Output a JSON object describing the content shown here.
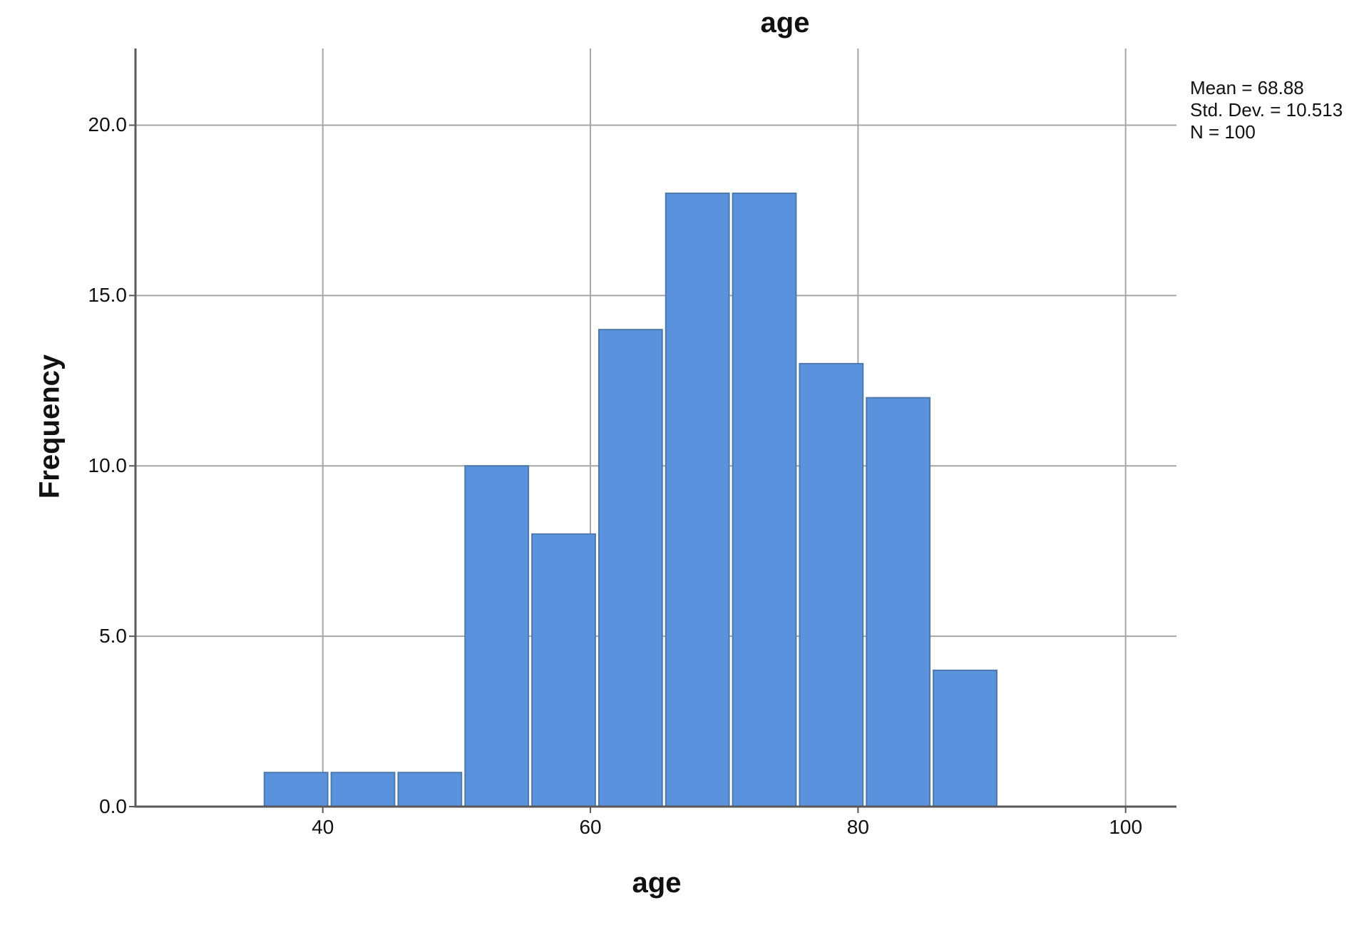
{
  "figure": {
    "background": "#ffffff"
  },
  "chart_data": {
    "type": "bar",
    "subtype": "histogram",
    "title": "age",
    "xlabel": "age",
    "ylabel": "Frequency",
    "grid": true,
    "legend": false,
    "x_axis": {
      "ticks": [
        40,
        60,
        80,
        100
      ],
      "tick_labels": [
        "40",
        "60",
        "80",
        "100"
      ],
      "range": [
        26,
        103.8
      ]
    },
    "y_axis": {
      "ticks": [
        0,
        5,
        10,
        15,
        20
      ],
      "tick_labels": [
        "0.0",
        "5.0",
        "10.0",
        "15.0",
        "20.0"
      ],
      "range": [
        0,
        22.25
      ]
    },
    "bin_width": 5,
    "bin_edges": [
      35.5,
      40.5,
      45.5,
      50.5,
      55.5,
      60.5,
      65.5,
      70.5,
      75.5,
      80.5,
      85.5,
      90.5
    ],
    "counts": [
      1,
      1,
      1,
      10,
      8,
      14,
      18,
      18,
      13,
      12,
      4
    ],
    "annotation": {
      "position": "top-right",
      "lines": [
        "Mean = 68.88",
        "Std. Dev. = 10.513",
        "N = 100"
      ]
    },
    "colors": {
      "bar_fill": "#5a92de",
      "bar_edge": "#4e79ad",
      "grid": "#a6a6a6",
      "axis": "#595959",
      "text": "#111111"
    }
  }
}
